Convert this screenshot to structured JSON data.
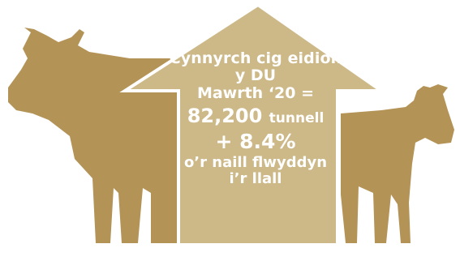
{
  "colors": {
    "cow": "#b49357",
    "arrow": "#cdb888",
    "arrow_outline": "#ffffff",
    "text": "#ffffff"
  },
  "headline": {
    "line1": "Cynnyrch cig eidion",
    "line2": "y DU",
    "line3": "Mawrth ‘20 ="
  },
  "stat": {
    "value": "82,200",
    "unit": "tunnell"
  },
  "change": {
    "value": "+ 8.4%",
    "line1": "o’r naill flwyddyn",
    "line2": "i’r llall"
  },
  "icons": {
    "left": "cow-silhouette-icon",
    "right": "calf-silhouette-icon",
    "center": "up-arrow-icon"
  }
}
